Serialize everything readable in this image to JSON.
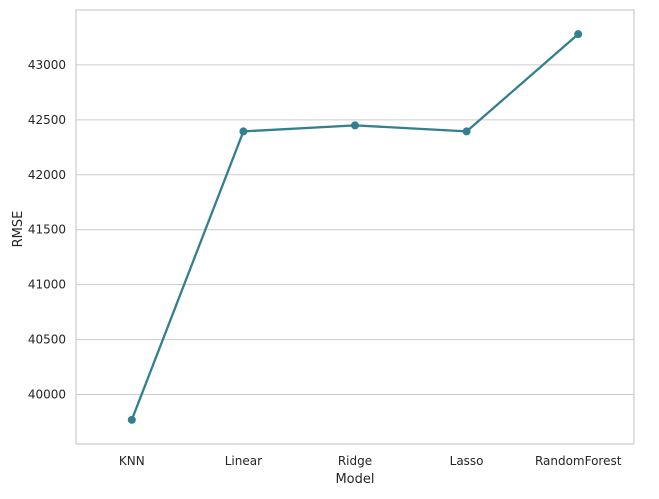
{
  "chart_data": {
    "type": "line",
    "title": "",
    "xlabel": "Model",
    "ylabel": "RMSE",
    "categories": [
      "KNN",
      "Linear",
      "Ridge",
      "Lasso",
      "RandomForest"
    ],
    "series": [
      {
        "values": [
          39770,
          42395,
          42450,
          42395,
          43280
        ]
      }
    ],
    "ylim": [
      39550,
      43500
    ],
    "yticks": [
      40000,
      40500,
      41000,
      41500,
      42000,
      42500,
      43000
    ],
    "grid": "horizontal",
    "color": "#327f8e"
  }
}
